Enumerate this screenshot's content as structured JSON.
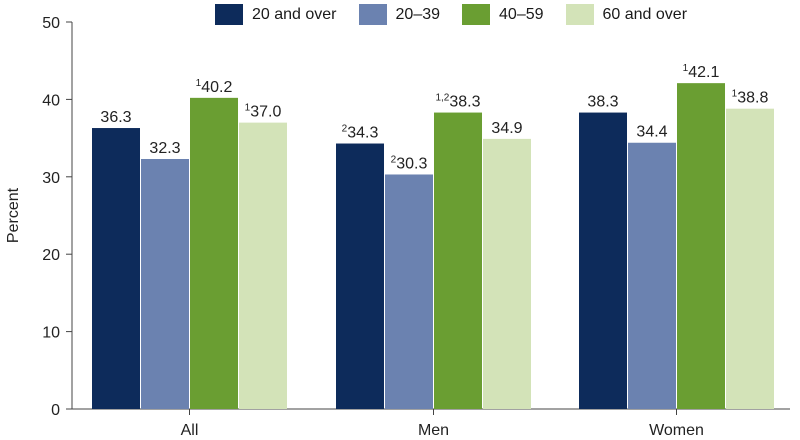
{
  "chart_data": {
    "type": "bar",
    "title": "",
    "xlabel": "",
    "ylabel": "Percent",
    "ylim": [
      0,
      50
    ],
    "yticks": [
      0,
      10,
      20,
      30,
      40,
      50
    ],
    "grid": false,
    "legend_position": "top",
    "categories": [
      "All",
      "Men",
      "Women"
    ],
    "series": [
      {
        "name": "20 and over",
        "color": "#0d2b5b",
        "values": [
          36.3,
          34.3,
          38.3
        ],
        "label_prefix": [
          "",
          "2",
          ""
        ]
      },
      {
        "name": "20–39",
        "color": "#6b82b0",
        "values": [
          32.3,
          30.3,
          34.4
        ],
        "label_prefix": [
          "",
          "2",
          ""
        ]
      },
      {
        "name": "40–59",
        "color": "#6a9e32",
        "values": [
          40.2,
          38.3,
          42.1
        ],
        "label_prefix": [
          "1",
          "1,2",
          "1"
        ]
      },
      {
        "name": "60 and over",
        "color": "#d3e3b8",
        "values": [
          37.0,
          34.9,
          38.8
        ],
        "label_prefix": [
          "1",
          "",
          "1"
        ]
      }
    ]
  }
}
